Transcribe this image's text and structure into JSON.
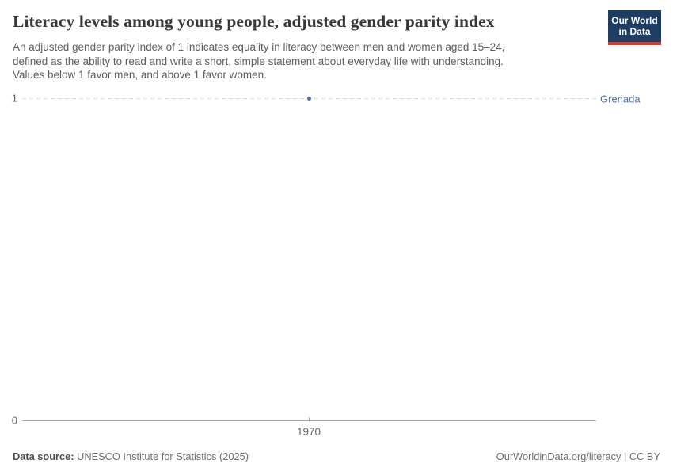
{
  "header": {
    "title": "Literacy levels among young people, adjusted gender parity index",
    "subtitle_lines": [
      "An adjusted gender parity index of 1 indicates equality in literacy between men and women aged 15–24,",
      "defined as the ability to read and write a short, simple statement about everyday life with understanding.",
      "Values below 1 favor men, and above 1 favor women."
    ],
    "logo": {
      "line1": "Our World",
      "line2": "in Data"
    }
  },
  "chart_data": {
    "type": "scatter",
    "title": "Literacy levels among young people, adjusted gender parity index",
    "x": [
      1970
    ],
    "series": [
      {
        "name": "Grenada",
        "values": [
          1
        ]
      }
    ],
    "xlabel": "",
    "ylabel": "",
    "ylim": [
      0,
      1
    ],
    "yticks": [
      0,
      1
    ],
    "xticks": [
      1970
    ],
    "grid": "dashed horizontal gridline at y=1 only",
    "legend_position": "right of gridline, entity name next to series"
  },
  "axes": {
    "y_top_label": "1",
    "y_bottom_label": "0",
    "x_tick_label": "1970"
  },
  "footer": {
    "source_label": "Data source:",
    "source_text": " UNESCO Institute for Statistics (2025)",
    "right_text": "OurWorldinData.org/literacy | CC BY"
  },
  "colors": {
    "accent_blue": "#4c6fa8",
    "logo_navy": "#1d3d63",
    "logo_red": "#d93a2b",
    "title_text": "#383838",
    "subtitle_text": "#5e5e5e",
    "axis_gray": "#a5a5a5",
    "grid_gray": "#dcdcdc"
  }
}
